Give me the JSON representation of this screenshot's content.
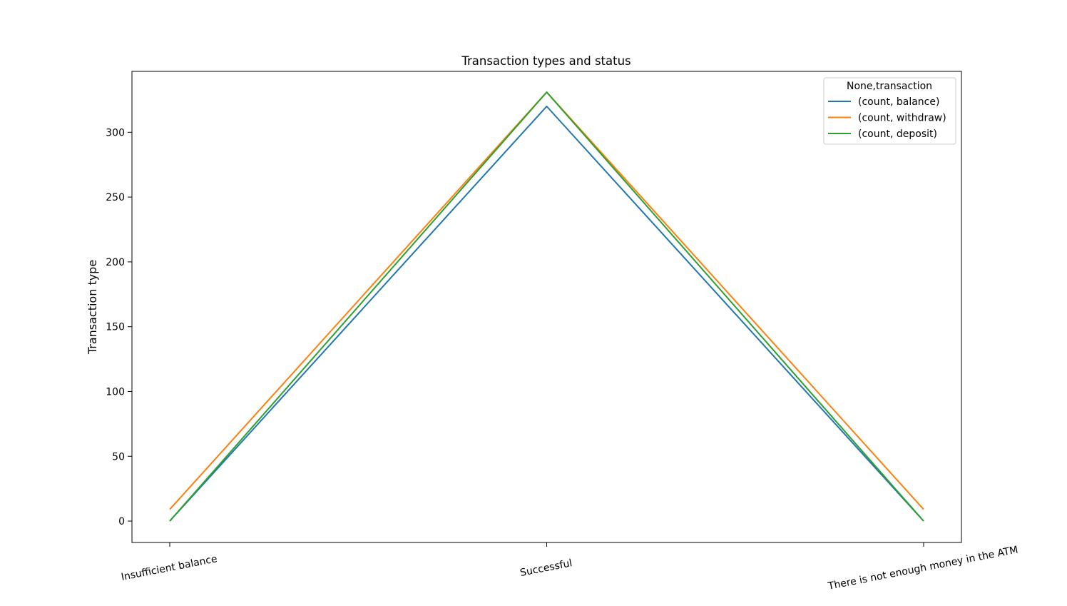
{
  "chart_data": {
    "type": "line",
    "title": "Transaction types and status",
    "xlabel": "",
    "ylabel": "Transaction type",
    "categories": [
      "Insufficient balance",
      "Successful",
      "There is not enough money in the ATM"
    ],
    "yticks": [
      0,
      50,
      100,
      150,
      200,
      250,
      300
    ],
    "ylim": [
      -16.5,
      347
    ],
    "grid": false,
    "legend": {
      "title": "None,transaction",
      "placement": "top-right"
    },
    "series": [
      {
        "name": "(count, balance)",
        "values": [
          0,
          320,
          0
        ],
        "color": "#1f77b4"
      },
      {
        "name": "(count, withdraw)",
        "values": [
          9,
          331,
          9
        ],
        "color": "#ff7f0e"
      },
      {
        "name": "(count, deposit)",
        "values": [
          0,
          331,
          0
        ],
        "color": "#2ca02c"
      }
    ]
  }
}
